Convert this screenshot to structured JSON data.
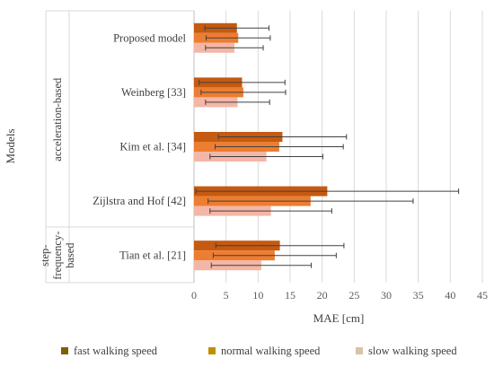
{
  "chart_data": {
    "type": "bar",
    "orientation": "horizontal",
    "y_axis_title": "Models",
    "x_axis_title": "MAE [cm]",
    "xlim": [
      0,
      45
    ],
    "x_ticks": [
      "0",
      "5",
      "10",
      "15",
      "20",
      "25",
      "30",
      "35",
      "40",
      "45"
    ],
    "grid": true,
    "legend_position": "bottom",
    "groups": [
      {
        "label": "acceleration-based",
        "categories": [
          "Proposed model",
          "Weinberg [33]",
          "Kim et al. [34]",
          "Zijlstra and Hof [42]"
        ]
      },
      {
        "label": "step-\nfrequency-\nbased",
        "categories": [
          "Tian et al. [21]"
        ]
      }
    ],
    "categories": [
      "Proposed model",
      "Weinberg [33]",
      "Kim et al. [34]",
      "Zijlstra and Hof [42]",
      "Tian et al. [21]"
    ],
    "series": [
      {
        "name": "fast walking speed",
        "color": "#c55a11",
        "legend_color": "#7f6000",
        "values": [
          6.7,
          7.5,
          13.8,
          20.8,
          13.4
        ],
        "error": [
          5.0,
          6.7,
          10.0,
          20.5,
          10.0
        ]
      },
      {
        "name": "normal walking speed",
        "color": "#ed7d31",
        "legend_color": "#bf9000",
        "values": [
          6.9,
          7.7,
          13.3,
          18.2,
          12.6
        ],
        "error": [
          5.0,
          6.6,
          10.0,
          16.0,
          9.6
        ]
      },
      {
        "name": "slow walking speed",
        "color": "#f4b6a6",
        "legend_color": "#d9c3a5",
        "values": [
          6.3,
          6.8,
          11.3,
          12.0,
          10.5
        ],
        "error": [
          4.5,
          5.0,
          8.8,
          9.5,
          7.8
        ]
      }
    ]
  }
}
